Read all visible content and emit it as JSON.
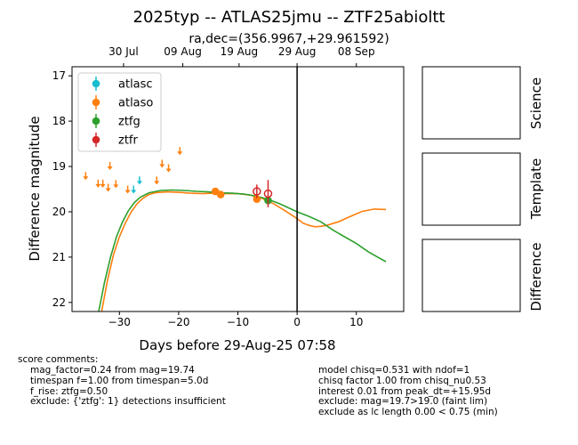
{
  "title": "2025typ -- ATLAS25jmu -- ZTF25abioltt",
  "subtitle": "ra,dec=(356.9967,+29.961592)",
  "chart_data": {
    "type": "scatter",
    "xlabel": "Days before 29-Aug-25 07:58",
    "ylabel": "Difference magnitude",
    "xlim": [
      -38,
      18
    ],
    "ylim": [
      22.2,
      16.8
    ],
    "y_inverted": true,
    "x_ticks": [
      -30,
      -20,
      -10,
      0,
      10
    ],
    "y_ticks": [
      17,
      18,
      19,
      20,
      21,
      22
    ],
    "top_axis_ticks": [
      {
        "x": -29.3,
        "label": "30 Jul"
      },
      {
        "x": -19.3,
        "label": "09 Aug"
      },
      {
        "x": -9.8,
        "label": "19 Aug"
      },
      {
        "x": 0,
        "label": "29 Aug"
      },
      {
        "x": 10,
        "label": "08 Sep"
      }
    ],
    "reference_line_x": 0,
    "legend": {
      "placement": "top-left",
      "entries": [
        "atlasc",
        "atlaso",
        "ztfg",
        "ztfr"
      ]
    },
    "series": [
      {
        "name": "atlasc",
        "color": "#17becf",
        "detections": [],
        "upper_limits": [
          {
            "x": -26.6,
            "y": 19.3
          },
          {
            "x": -27.6,
            "y": 19.5
          }
        ]
      },
      {
        "name": "atlaso",
        "color": "#ff7f0e",
        "detections": [
          {
            "x": -13.8,
            "y": 19.55,
            "err": 0.05
          },
          {
            "x": -12.9,
            "y": 19.62,
            "err": 0.05
          },
          {
            "x": -6.8,
            "y": 19.72,
            "err": 0.06
          }
        ],
        "upper_limits": [
          {
            "x": -35.7,
            "y": 19.2
          },
          {
            "x": -33.6,
            "y": 19.37
          },
          {
            "x": -32.8,
            "y": 19.37
          },
          {
            "x": -31.9,
            "y": 19.46
          },
          {
            "x": -31.6,
            "y": 18.98
          },
          {
            "x": -30.6,
            "y": 19.38
          },
          {
            "x": -28.6,
            "y": 19.5
          },
          {
            "x": -23.7,
            "y": 19.3
          },
          {
            "x": -22.8,
            "y": 18.93
          },
          {
            "x": -21.7,
            "y": 19.03
          },
          {
            "x": -19.8,
            "y": 18.65
          }
        ]
      },
      {
        "name": "ztfg",
        "color": "#2ca02c",
        "detections": [
          {
            "x": -4.9,
            "y": 19.75,
            "err": 0.07
          }
        ],
        "upper_limits": []
      },
      {
        "name": "ztfr",
        "color": "#d62728",
        "detections": [
          {
            "x": -6.8,
            "y": 19.55,
            "err": 0.15,
            "open": true
          },
          {
            "x": -4.9,
            "y": 19.6,
            "err": 0.3,
            "open": true
          }
        ],
        "upper_limits": []
      }
    ],
    "model_curves": [
      {
        "name": "atlaso",
        "color": "#ff7f0e",
        "points": [
          [
            -33,
            22.2
          ],
          [
            -32,
            21.5
          ],
          [
            -31,
            20.95
          ],
          [
            -30,
            20.55
          ],
          [
            -29,
            20.25
          ],
          [
            -28,
            20.0
          ],
          [
            -27,
            19.82
          ],
          [
            -26,
            19.7
          ],
          [
            -25,
            19.62
          ],
          [
            -24,
            19.58
          ],
          [
            -22,
            19.56
          ],
          [
            -20,
            19.57
          ],
          [
            -18,
            19.59
          ],
          [
            -16,
            19.6
          ],
          [
            -14,
            19.59
          ],
          [
            -12,
            19.6
          ],
          [
            -10,
            19.6
          ],
          [
            -8,
            19.63
          ],
          [
            -6,
            19.7
          ],
          [
            -4,
            19.82
          ],
          [
            -2,
            19.98
          ],
          [
            0,
            20.15
          ],
          [
            1,
            20.25
          ],
          [
            2,
            20.3
          ],
          [
            3,
            20.33
          ],
          [
            4,
            20.32
          ],
          [
            5,
            20.3
          ],
          [
            7,
            20.22
          ],
          [
            9,
            20.1
          ],
          [
            11,
            19.99
          ],
          [
            13,
            19.94
          ],
          [
            15,
            19.95
          ]
        ]
      },
      {
        "name": "ztfg",
        "color": "#2ca02c",
        "points": [
          [
            -33.5,
            22.2
          ],
          [
            -32.5,
            21.55
          ],
          [
            -31.5,
            21.0
          ],
          [
            -30.5,
            20.55
          ],
          [
            -29.5,
            20.23
          ],
          [
            -28.5,
            19.98
          ],
          [
            -27.5,
            19.8
          ],
          [
            -26.5,
            19.68
          ],
          [
            -25,
            19.58
          ],
          [
            -23,
            19.53
          ],
          [
            -21,
            19.52
          ],
          [
            -19,
            19.53
          ],
          [
            -17,
            19.55
          ],
          [
            -15,
            19.56
          ],
          [
            -13,
            19.58
          ],
          [
            -11,
            19.59
          ],
          [
            -9,
            19.61
          ],
          [
            -7,
            19.65
          ],
          [
            -5,
            19.72
          ],
          [
            -3,
            19.82
          ],
          [
            -1,
            19.94
          ],
          [
            0,
            20.0
          ],
          [
            2,
            20.1
          ],
          [
            4,
            20.22
          ],
          [
            6,
            20.4
          ],
          [
            8,
            20.55
          ],
          [
            10,
            20.7
          ],
          [
            12,
            20.88
          ],
          [
            14,
            21.03
          ],
          [
            15,
            21.1
          ]
        ]
      }
    ]
  },
  "panels": [
    "Science",
    "Template",
    "Difference"
  ],
  "comments_left": {
    "heading": "score comments:",
    "lines": [
      "mag_factor=0.24 from mag=19.74",
      "timespan f=1.00 from timespan=5.0d",
      "f_rise: ztfg=0.50",
      "exclude: {'ztfg': 1} detections insufficient"
    ]
  },
  "comments_right": {
    "lines": [
      "model chisq=0.531 with ndof=1",
      "chisq factor 1.00 from chisq_nu0.53",
      "interest 0.01 from peak_dt=+15.95d",
      "exclude: mag=19.7>19.0 (faint lim)",
      "exclude as lc length 0.00 < 0.75 (min)"
    ]
  }
}
